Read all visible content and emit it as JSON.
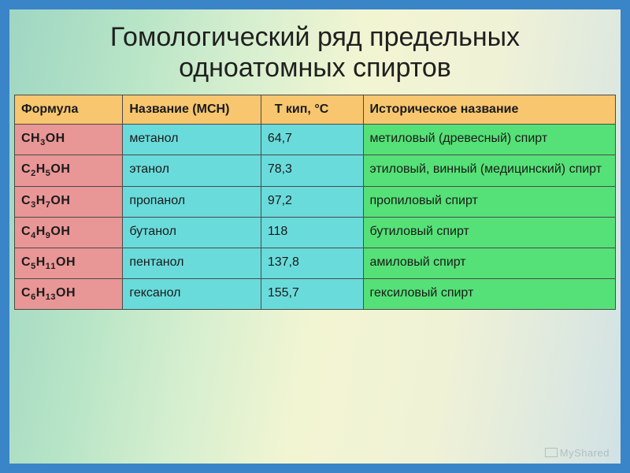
{
  "title": "Гомологический ряд предельных одноатомных спиртов",
  "watermark": "MyShared",
  "table": {
    "type": "table",
    "header_bg": "#f7c66f",
    "col_bgs": [
      "#e99696",
      "#6adbdb",
      "#6adbdb",
      "#55e177"
    ],
    "border_color": "#4a4a4a",
    "columns": [
      {
        "label": "Формула"
      },
      {
        "label": "   Название (МСН)"
      },
      {
        "label": "  Т кип, °С"
      },
      {
        "label": "Историческое название"
      }
    ],
    "rows": [
      {
        "formula": "CH₃OH",
        "name": "метанол",
        "boil": "64,7",
        "hist": "метиловый (древесный) спирт"
      },
      {
        "formula": "C₂H₅OH",
        "name": "этанол",
        "boil": "78,3",
        "hist": "этиловый, винный (медицинский) спирт"
      },
      {
        "formula": "C₃H₇OH",
        "name": "пропанол",
        "boil": "97,2",
        "hist": "пропиловый спирт"
      },
      {
        "formula": "C₄H₉OH",
        "name": "бутанол",
        "boil": "118",
        "hist": "бутиловый спирт"
      },
      {
        "formula": "C₅H₁₁OH",
        "name": "пентанол",
        "boil": "137,8",
        "hist": "амиловый спирт"
      },
      {
        "formula": "C₆H₁₃OH",
        "name": "гексанол",
        "boil": "155,7",
        "hist": "гексиловый спирт"
      }
    ]
  }
}
